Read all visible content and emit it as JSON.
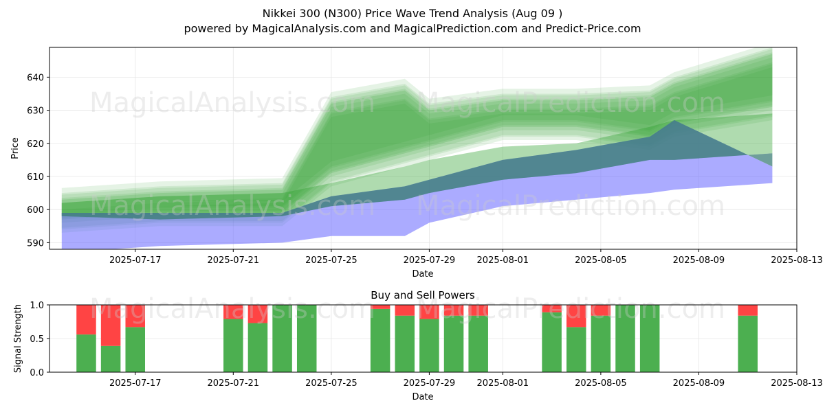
{
  "header": {
    "title": "Nikkei 300 (N300) Price Wave Trend Analysis (Aug 09 )",
    "subtitle": "powered by MagicalAnalysis.com and MagicalPrediction.com and Predict-Price.com"
  },
  "watermarks": [
    "MagicalAnalysis.com",
    "MagicalPrediction.com"
  ],
  "colors": {
    "green_band": "#2ca02c",
    "blue_band": "#6666ff",
    "teal_overlap": "#3f7f78",
    "buy": "#4caf50",
    "sell": "#ff4444"
  },
  "chart_data": [
    {
      "type": "area",
      "title": "",
      "xlabel": "Date",
      "ylabel": "Price",
      "ylim": [
        588,
        649
      ],
      "xlim": [
        "2025-07-13T12:00",
        "2025-08-13T00:00"
      ],
      "grid": true,
      "x_ticks": [
        "2025-07-17",
        "2025-07-21",
        "2025-07-25",
        "2025-07-29",
        "2025-08-01",
        "2025-08-05",
        "2025-08-09",
        "2025-08-13"
      ],
      "y_ticks": [
        590,
        600,
        610,
        620,
        630,
        640
      ],
      "series": [
        {
          "x": [
            "2025-07-14",
            "2025-07-18",
            "2025-07-23",
            "2025-07-25",
            "2025-07-28",
            "2025-07-29",
            "2025-08-01",
            "2025-08-04",
            "2025-08-07",
            "2025-08-08",
            "2025-08-12"
          ],
          "upper": [
            602,
            604,
            605,
            608,
            613,
            615,
            619,
            620,
            625,
            627,
            629
          ],
          "lower": [
            598,
            597,
            598,
            601,
            603,
            605,
            609,
            611,
            615,
            615,
            617
          ]
        },
        {
          "x": [
            "2025-07-14",
            "2025-07-18",
            "2025-07-23",
            "2025-07-25",
            "2025-07-28",
            "2025-07-29",
            "2025-08-01",
            "2025-08-04",
            "2025-08-07",
            "2025-08-08",
            "2025-08-12"
          ],
          "upper": [
            599,
            599,
            599,
            604,
            607,
            609,
            615,
            618,
            622,
            627,
            613
          ],
          "lower": [
            587,
            589,
            590,
            592,
            592,
            596,
            601,
            603,
            605,
            606,
            608
          ]
        },
        {
          "x": [
            "2025-07-14",
            "2025-07-18",
            "2025-07-23",
            "2025-07-25",
            "2025-07-28",
            "2025-07-29",
            "2025-08-01",
            "2025-08-04",
            "2025-08-07",
            "2025-08-08",
            "2025-08-12"
          ],
          "upper": [
            603,
            605,
            606,
            632,
            636,
            630,
            633,
            633,
            634,
            638,
            647
          ],
          "lower": [
            597,
            599,
            599,
            611,
            617,
            619,
            625,
            625,
            622,
            626,
            631
          ]
        }
      ]
    },
    {
      "type": "bar",
      "title": "Buy and Sell Powers",
      "xlabel": "Date",
      "ylabel": "Signal Strength",
      "ylim": [
        0,
        1
      ],
      "xlim": [
        "2025-07-13T12:00",
        "2025-08-13T00:00"
      ],
      "grid": true,
      "x_ticks": [
        "2025-07-17",
        "2025-07-21",
        "2025-07-25",
        "2025-07-29",
        "2025-08-01",
        "2025-08-05",
        "2025-08-09",
        "2025-08-13"
      ],
      "y_ticks": [
        "0.0",
        "0.5",
        "1.0"
      ],
      "categories": [
        "2025-07-15",
        "2025-07-16",
        "2025-07-17",
        "2025-07-21",
        "2025-07-22",
        "2025-07-23",
        "2025-07-24",
        "2025-07-27",
        "2025-07-28",
        "2025-07-29",
        "2025-07-30",
        "2025-07-31",
        "2025-08-03",
        "2025-08-04",
        "2025-08-05",
        "2025-08-06",
        "2025-08-07",
        "2025-08-11"
      ],
      "series": [
        {
          "values": [
            0.56,
            0.39,
            0.67,
            0.79,
            0.73,
            1.0,
            1.0,
            0.94,
            0.84,
            0.79,
            0.84,
            0.84,
            0.89,
            0.67,
            0.84,
            1.0,
            1.0,
            0.84
          ]
        },
        {
          "values": [
            0.44,
            0.61,
            0.33,
            0.21,
            0.27,
            0.0,
            0.0,
            0.06,
            0.16,
            0.21,
            0.16,
            0.16,
            0.11,
            0.33,
            0.16,
            0.0,
            0.0,
            0.16
          ]
        }
      ]
    }
  ]
}
